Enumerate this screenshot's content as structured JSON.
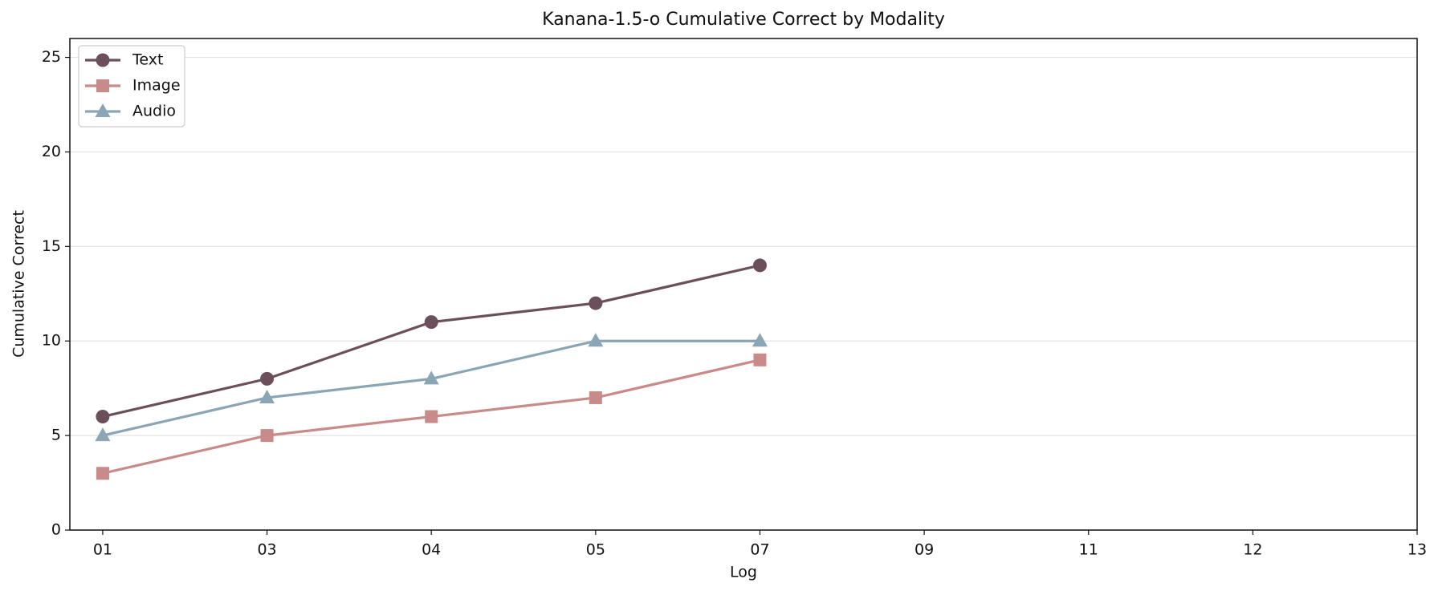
{
  "chart_data": {
    "type": "line",
    "title": "Kanana-1.5-o  Cumulative Correct by Modality",
    "x_label": "Log",
    "y_label": "Cumulative Correct",
    "categories": [
      "01",
      "03",
      "04",
      "05",
      "07",
      "09",
      "11",
      "12",
      "13"
    ],
    "series": [
      {
        "name": "Text",
        "color": "#6b4f5b",
        "marker": "circle",
        "values": [
          6,
          8,
          11,
          12,
          14,
          null,
          null,
          null,
          null
        ]
      },
      {
        "name": "Image",
        "color": "#c98a8a",
        "marker": "square",
        "values": [
          3,
          5,
          6,
          7,
          9,
          null,
          null,
          null,
          null
        ]
      },
      {
        "name": "Audio",
        "color": "#8aa5b3",
        "marker": "triangle",
        "values": [
          5,
          7,
          8,
          10,
          10,
          null,
          null,
          null,
          null
        ]
      }
    ],
    "ylim": [
      0,
      26
    ],
    "yticks": [
      0,
      5,
      10,
      15,
      20,
      25
    ],
    "grid": true,
    "legend": "upper left"
  }
}
